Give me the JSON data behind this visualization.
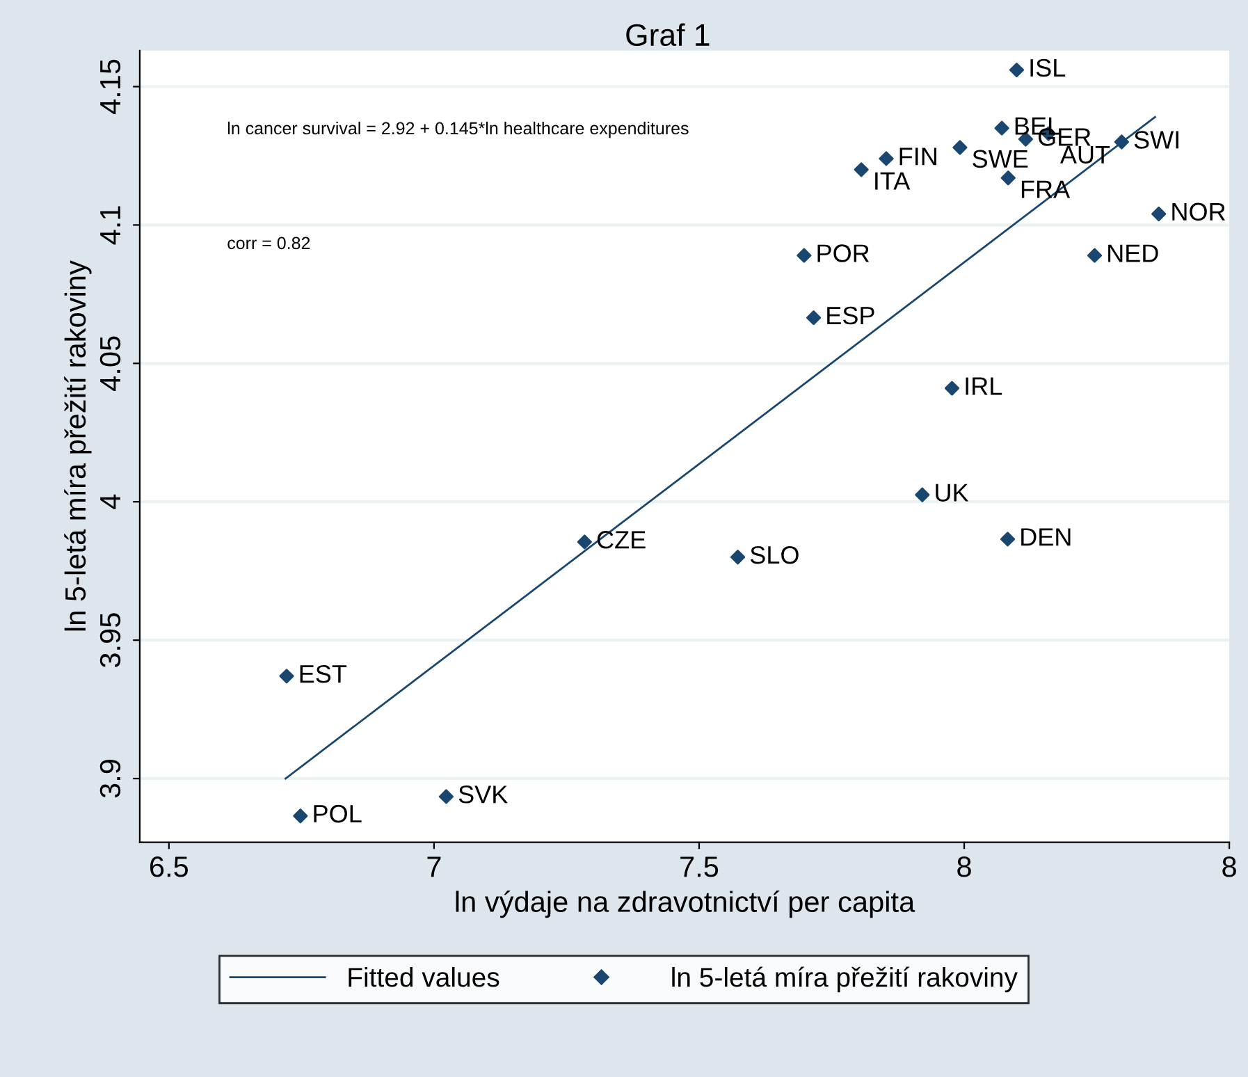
{
  "chart_data": {
    "type": "scatter",
    "title": "Graf 1",
    "xlabel": "ln výdaje na zdravotnictví per capita",
    "ylabel": "ln 5-letá míra přežití rakoviny",
    "xlim": [
      6.445,
      8.5
    ],
    "xticks": [
      6.5,
      7,
      7.5,
      8,
      {
        "value": 8.5,
        "label": "8"
      }
    ],
    "ylim": [
      3.877,
      4.163
    ],
    "yticks": [
      3.9,
      3.95,
      4,
      4.05,
      4.1,
      4.15
    ],
    "grid": "y",
    "legend": "bottom",
    "series": [
      {
        "name": "Fitted values",
        "type": "line",
        "color": "#1a476f",
        "x": [
          6.72,
          8.36
        ],
        "values": [
          3.9,
          4.139
        ],
        "line_style": "solid"
      },
      {
        "name": "ln 5-letá míra přežití rakoviny",
        "color": "#1a476f",
        "marker": "diamond",
        "x": [
          8.099,
          8.071,
          8.159,
          8.116,
          8.297,
          7.992,
          7.853,
          7.806,
          8.083,
          8.367,
          8.246,
          7.698,
          7.716,
          7.977,
          7.921,
          8.082,
          7.284,
          7.573,
          6.722,
          7.023,
          6.748
        ],
        "values": [
          4.156,
          4.135,
          4.133,
          4.131,
          4.13,
          4.128,
          4.124,
          4.12,
          4.117,
          4.104,
          4.089,
          4.089,
          4.0665,
          4.041,
          4.0025,
          3.9865,
          3.9855,
          3.98,
          3.937,
          3.8935,
          3.8865
        ]
      }
    ],
    "annotations": [
      "ln cancer survival = 2.92 + 0.145*ln healthcare expenditures",
      "corr = 0.82",
      {
        "text": "ISL",
        "x": 8.099,
        "y": 4.156
      },
      {
        "text": "BEL",
        "x": 8.071,
        "y": 4.135
      },
      {
        "text": "AUT",
        "x": 8.159,
        "y": 4.133
      },
      {
        "text": "GER",
        "x": 8.116,
        "y": 4.131
      },
      {
        "text": "SWI",
        "x": 8.297,
        "y": 4.13
      },
      {
        "text": "SWE",
        "x": 7.992,
        "y": 4.128
      },
      {
        "text": "FIN",
        "x": 7.853,
        "y": 4.124
      },
      {
        "text": "ITA",
        "x": 7.806,
        "y": 4.12
      },
      {
        "text": "FRA",
        "x": 8.083,
        "y": 4.117
      },
      {
        "text": "NOR",
        "x": 8.367,
        "y": 4.104
      },
      {
        "text": "NED",
        "x": 8.246,
        "y": 4.089
      },
      {
        "text": "POR",
        "x": 7.698,
        "y": 4.089
      },
      {
        "text": "ESP",
        "x": 7.716,
        "y": 4.0665
      },
      {
        "text": "IRL",
        "x": 7.977,
        "y": 4.041
      },
      {
        "text": "UK",
        "x": 7.921,
        "y": 4.0025
      },
      {
        "text": "DEN",
        "x": 8.082,
        "y": 3.9865
      },
      {
        "text": "CZE",
        "x": 7.284,
        "y": 3.9855
      },
      {
        "text": "SLO",
        "x": 7.573,
        "y": 3.98
      },
      {
        "text": "EST",
        "x": 6.722,
        "y": 3.937
      },
      {
        "text": "SVK",
        "x": 7.023,
        "y": 3.8935
      },
      {
        "text": "POL",
        "x": 6.748,
        "y": 3.8865
      }
    ]
  }
}
